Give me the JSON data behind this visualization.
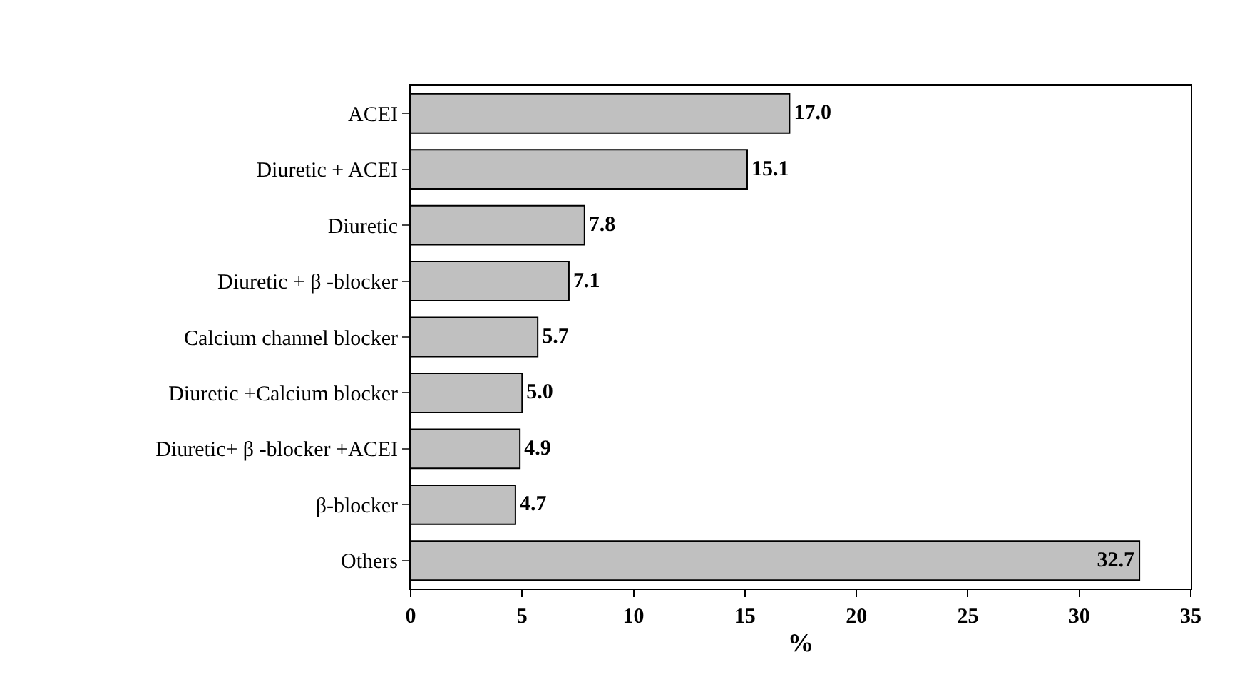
{
  "chart_data": {
    "type": "bar",
    "orientation": "horizontal",
    "xlabel": "%",
    "categories": [
      "ACEI",
      "Diuretic + ACEI",
      "Diuretic",
      "Diuretic + β -blocker",
      "Calcium channel blocker",
      "Diuretic +Calcium blocker",
      "Diuretic+ β -blocker +ACEI",
      "β-blocker",
      "Others"
    ],
    "values": [
      17.0,
      15.1,
      7.8,
      7.1,
      5.7,
      5.0,
      4.9,
      4.7,
      32.7
    ],
    "value_labels": [
      "17.0",
      "15.1",
      "7.8",
      "7.1",
      "5.7",
      "5.0",
      "4.9",
      "4.7",
      "32.7"
    ],
    "color": "#c0c0c0",
    "xlim": [
      0,
      35
    ],
    "xticks": [
      0,
      5,
      10,
      15,
      20,
      25,
      30,
      35
    ]
  }
}
